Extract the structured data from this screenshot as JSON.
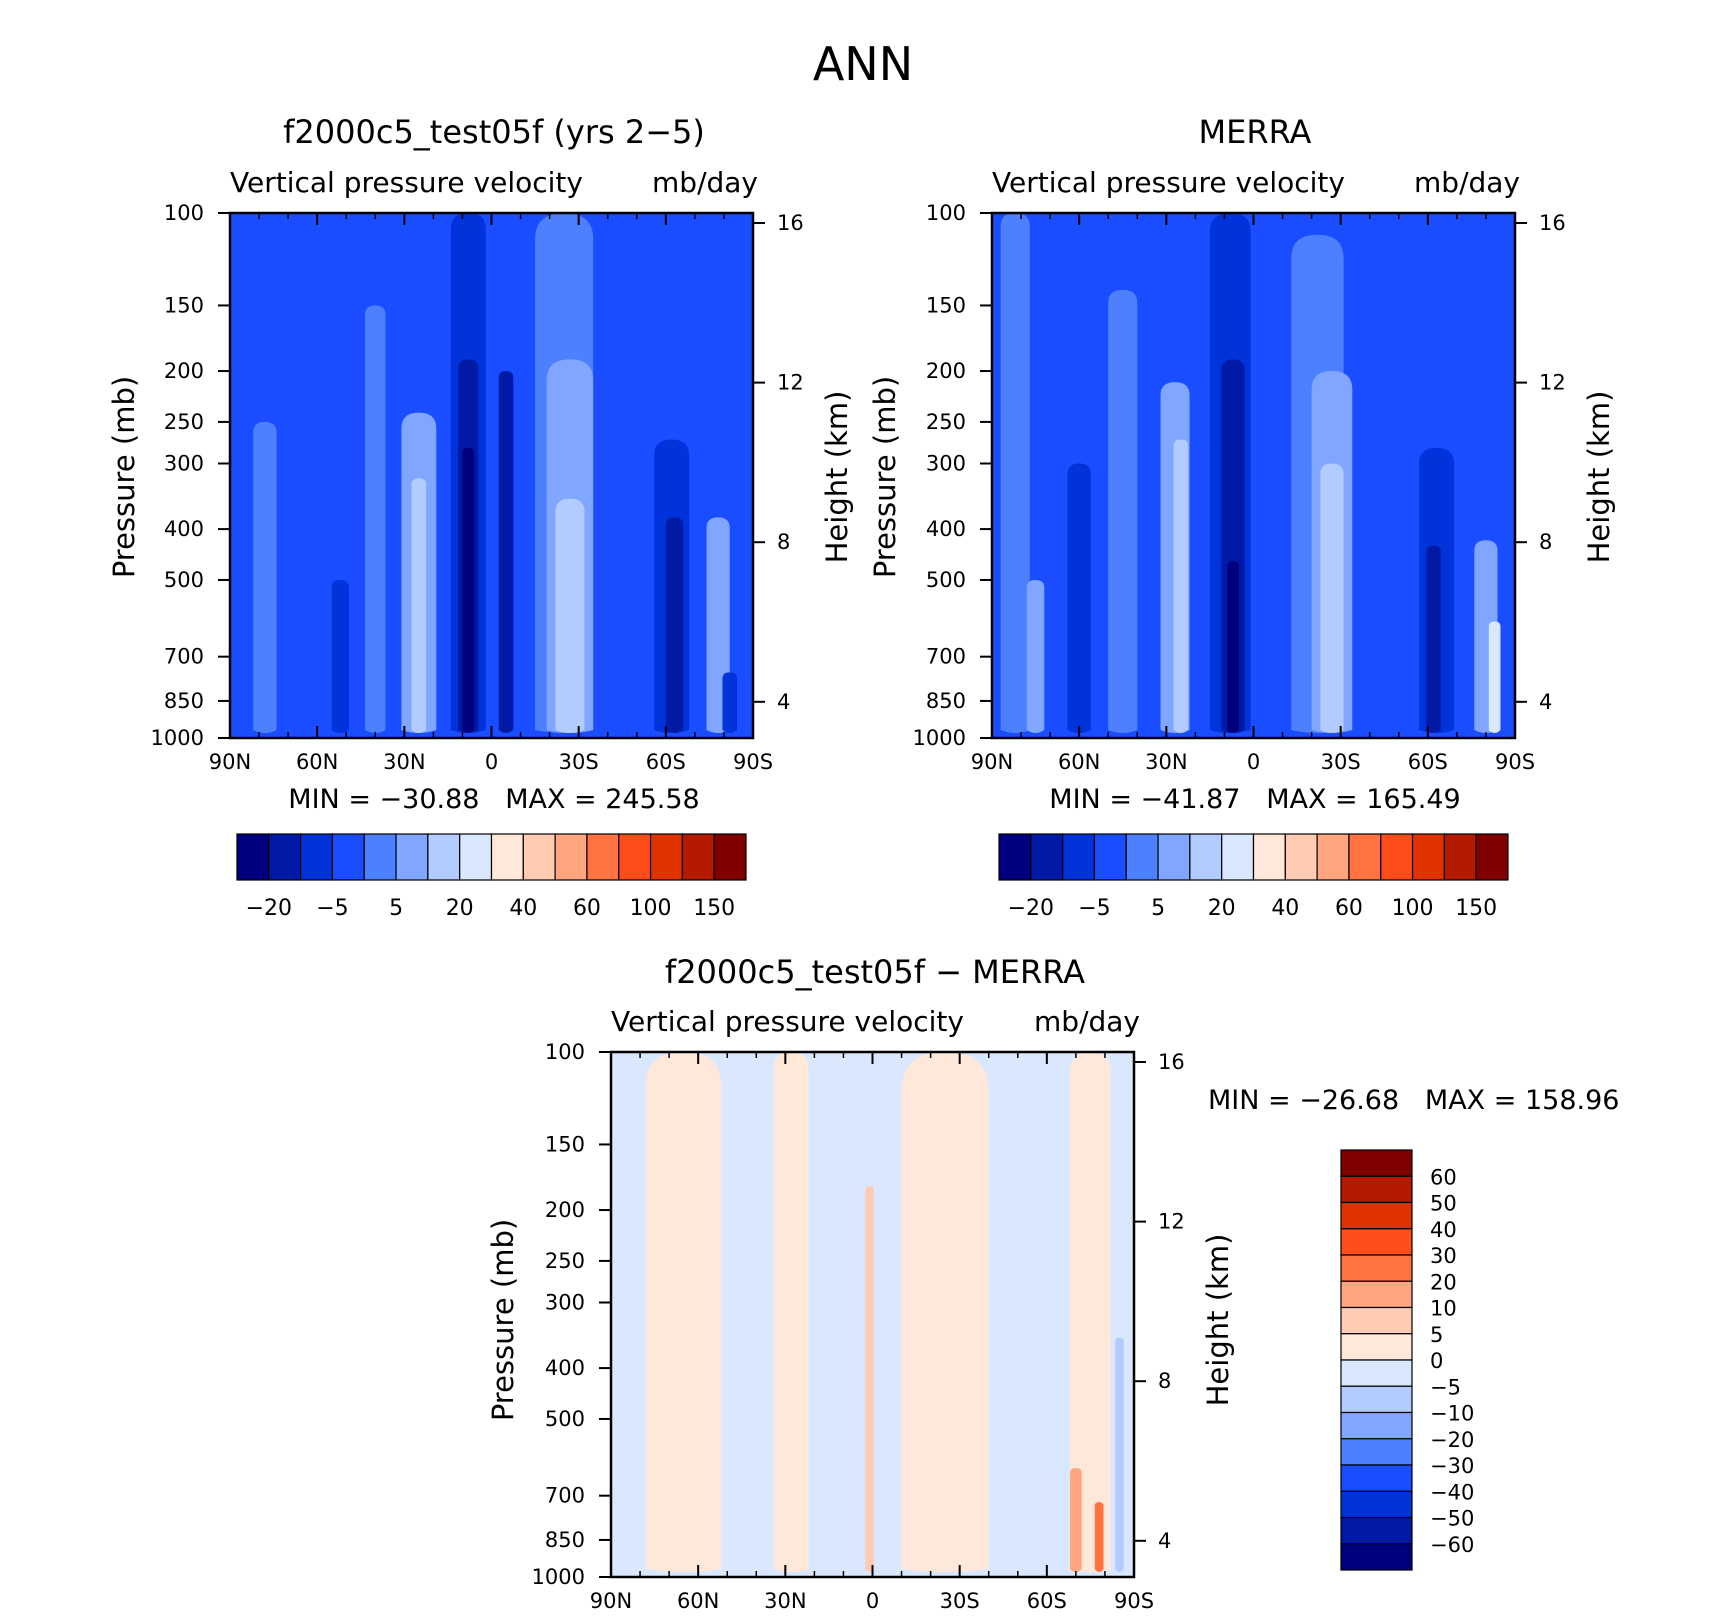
{
  "figure": {
    "title": "ANN"
  },
  "colors": {
    "full_scale": [
      "#00007f",
      "#001aa6",
      "#0033d9",
      "#1a4dff",
      "#4d80ff",
      "#80a6ff",
      "#b3ccff",
      "#d9e8ff",
      "#ffe8d9",
      "#ffccb3",
      "#ffa680",
      "#ff7340",
      "#ff4d1a",
      "#e03300",
      "#b31a00",
      "#800000"
    ],
    "diff_scale": [
      "#00007f",
      "#001aa6",
      "#0033d9",
      "#1a4dff",
      "#4d80ff",
      "#80a6ff",
      "#b3ccff",
      "#d9e8ff",
      "#ffe8d9",
      "#ffccb3",
      "#ffa680",
      "#ff7340",
      "#ff4d1a",
      "#e03300",
      "#b31a00",
      "#800000"
    ]
  },
  "chart_data": [
    {
      "id": "model",
      "type": "heatmap",
      "title": "f2000c5_test05f (yrs 2−5)",
      "subtitle_left": "Vertical pressure velocity",
      "subtitle_right": "mb/day",
      "ylabel": "Pressure (mb)",
      "ylabel_right": "Height (km)",
      "y_scale": "log",
      "ylim": [
        1000,
        100
      ],
      "xlim": [
        90,
        -90
      ],
      "x_ticks": [
        "90N",
        "60N",
        "30N",
        "0",
        "30S",
        "60S",
        "90S"
      ],
      "y_ticks": [
        "100",
        "150",
        "200",
        "250",
        "300",
        "400",
        "500",
        "700",
        "850",
        "1000"
      ],
      "y_right_ticks": [
        "16",
        "12",
        "8",
        "4"
      ],
      "min_max": "MIN = −30.88   MAX = 245.58",
      "colorbar": {
        "orientation": "horizontal",
        "labels": [
          "−20",
          "−5",
          "5",
          "20",
          "40",
          "60",
          "100",
          "150"
        ]
      },
      "field_levels": {
        "background": 3,
        "bands": [
          {
            "lat": 78,
            "width": 8,
            "level": 4,
            "top": 250
          },
          {
            "lat": 52,
            "width": 6,
            "level": 2,
            "top": 500
          },
          {
            "lat": 40,
            "width": 7,
            "level": 4,
            "top": 150
          },
          {
            "lat": 25,
            "width": 12,
            "level": 5,
            "top": 240
          },
          {
            "lat": 25,
            "width": 5,
            "level": 6,
            "top": 320
          },
          {
            "lat": 8,
            "width": 12,
            "level": 2,
            "top": 100
          },
          {
            "lat": 8,
            "width": 7,
            "level": 1,
            "top": 190
          },
          {
            "lat": 8,
            "width": 4,
            "level": 0,
            "top": 280
          },
          {
            "lat": -5,
            "width": 5,
            "level": 1,
            "top": 200
          },
          {
            "lat": -25,
            "width": 20,
            "level": 4,
            "top": 100
          },
          {
            "lat": -27,
            "width": 16,
            "level": 5,
            "top": 190
          },
          {
            "lat": -27,
            "width": 10,
            "level": 6,
            "top": 350
          },
          {
            "lat": -62,
            "width": 12,
            "level": 2,
            "top": 270
          },
          {
            "lat": -63,
            "width": 6,
            "level": 1,
            "top": 380
          },
          {
            "lat": -78,
            "width": 8,
            "level": 5,
            "top": 380
          },
          {
            "lat": -82,
            "width": 5,
            "level": 2,
            "top": 750
          }
        ]
      }
    },
    {
      "id": "obs",
      "type": "heatmap",
      "title": "MERRA",
      "subtitle_left": "Vertical pressure velocity",
      "subtitle_right": "mb/day",
      "ylabel": "Pressure (mb)",
      "ylabel_right": "Height (km)",
      "y_scale": "log",
      "ylim": [
        1000,
        100
      ],
      "xlim": [
        90,
        -90
      ],
      "x_ticks": [
        "90N",
        "60N",
        "30N",
        "0",
        "30S",
        "60S",
        "90S"
      ],
      "y_ticks": [
        "100",
        "150",
        "200",
        "250",
        "300",
        "400",
        "500",
        "700",
        "850",
        "1000"
      ],
      "y_right_ticks": [
        "16",
        "12",
        "8",
        "4"
      ],
      "min_max": "MIN = −41.87   MAX = 165.49",
      "colorbar": {
        "orientation": "horizontal",
        "labels": [
          "−20",
          "−5",
          "5",
          "20",
          "40",
          "60",
          "100",
          "150"
        ]
      },
      "field_levels": {
        "background": 3,
        "bands": [
          {
            "lat": 82,
            "width": 10,
            "level": 4,
            "top": 100
          },
          {
            "lat": 75,
            "width": 6,
            "level": 5,
            "top": 500
          },
          {
            "lat": 60,
            "width": 8,
            "level": 2,
            "top": 300
          },
          {
            "lat": 45,
            "width": 10,
            "level": 4,
            "top": 140
          },
          {
            "lat": 27,
            "width": 10,
            "level": 5,
            "top": 210
          },
          {
            "lat": 25,
            "width": 5,
            "level": 6,
            "top": 270
          },
          {
            "lat": 8,
            "width": 14,
            "level": 2,
            "top": 100
          },
          {
            "lat": 7,
            "width": 8,
            "level": 1,
            "top": 190
          },
          {
            "lat": 7,
            "width": 4,
            "level": 0,
            "top": 460
          },
          {
            "lat": -22,
            "width": 18,
            "level": 4,
            "top": 110
          },
          {
            "lat": -27,
            "width": 14,
            "level": 5,
            "top": 200
          },
          {
            "lat": -27,
            "width": 8,
            "level": 6,
            "top": 300
          },
          {
            "lat": -63,
            "width": 12,
            "level": 2,
            "top": 280
          },
          {
            "lat": -62,
            "width": 5,
            "level": 1,
            "top": 430
          },
          {
            "lat": -80,
            "width": 8,
            "level": 5,
            "top": 420
          },
          {
            "lat": -83,
            "width": 4,
            "level": 7,
            "top": 600
          }
        ]
      }
    },
    {
      "id": "diff",
      "type": "heatmap",
      "title": "f2000c5_test05f − MERRA",
      "subtitle_left": "Vertical pressure velocity",
      "subtitle_right": "mb/day",
      "ylabel": "Pressure (mb)",
      "ylabel_right": "Height (km)",
      "y_scale": "log",
      "ylim": [
        1000,
        100
      ],
      "xlim": [
        90,
        -90
      ],
      "x_ticks": [
        "90N",
        "60N",
        "30N",
        "0",
        "30S",
        "60S",
        "90S"
      ],
      "y_ticks": [
        "100",
        "150",
        "200",
        "250",
        "300",
        "400",
        "500",
        "700",
        "850",
        "1000"
      ],
      "y_right_ticks": [
        "16",
        "12",
        "8",
        "4"
      ],
      "min_max": "MIN = −26.68   MAX = 158.96",
      "colorbar": {
        "orientation": "vertical",
        "labels": [
          "60",
          "50",
          "40",
          "30",
          "20",
          "10",
          "5",
          "0",
          "−5",
          "−10",
          "−20",
          "−30",
          "−40",
          "−50",
          "−60"
        ]
      },
      "field_levels": {
        "background": 7,
        "bands": [
          {
            "lat": 65,
            "width": 26,
            "level": 8,
            "top": 100
          },
          {
            "lat": 28,
            "width": 12,
            "level": 8,
            "top": 100
          },
          {
            "lat": 1,
            "width": 3,
            "level": 9,
            "top": 180
          },
          {
            "lat": -25,
            "width": 30,
            "level": 8,
            "top": 100
          },
          {
            "lat": -75,
            "width": 14,
            "level": 8,
            "top": 100
          },
          {
            "lat": -85,
            "width": 3,
            "level": 6,
            "top": 350
          },
          {
            "lat": -70,
            "width": 4,
            "level": 10,
            "top": 620
          },
          {
            "lat": -78,
            "width": 3,
            "level": 11,
            "top": 720
          }
        ]
      }
    }
  ]
}
